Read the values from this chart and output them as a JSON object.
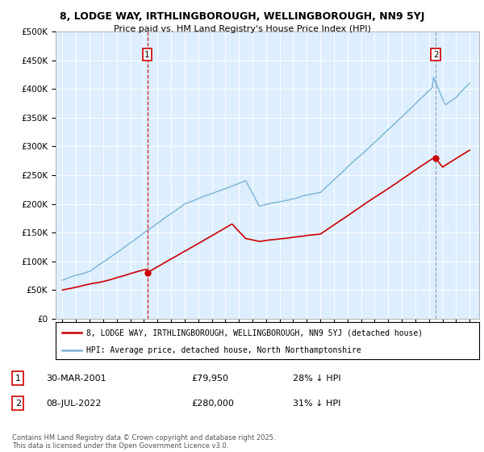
{
  "title_line1": "8, LODGE WAY, IRTHLINGBOROUGH, WELLINGBOROUGH, NN9 5YJ",
  "title_line2": "Price paid vs. HM Land Registry's House Price Index (HPI)",
  "ylim": [
    0,
    500000
  ],
  "yticks": [
    0,
    50000,
    100000,
    150000,
    200000,
    250000,
    300000,
    350000,
    400000,
    450000,
    500000
  ],
  "hpi_color": "#7ab3d4",
  "price_color": "#cc0000",
  "vline1_color": "#cc0000",
  "vline2_color": "#8899aa",
  "background_color": "#ffffff",
  "plot_bg_color": "#ddeeff",
  "grid_color": "#ffffff",
  "sale1_year": 2001.25,
  "sale1_price": 79950,
  "sale2_year": 2022.52,
  "sale2_price": 280000,
  "legend_entry1": "8, LODGE WAY, IRTHLINGBOROUGH, WELLINGBOROUGH, NN9 5YJ (detached house)",
  "legend_entry2": "HPI: Average price, detached house, North Northamptonshire",
  "annotation1": [
    "1",
    "30-MAR-2001",
    "£79,950",
    "28% ↓ HPI"
  ],
  "annotation2": [
    "2",
    "08-JUL-2022",
    "£280,000",
    "31% ↓ HPI"
  ],
  "footer": "Contains HM Land Registry data © Crown copyright and database right 2025.\nThis data is licensed under the Open Government Licence v3.0."
}
